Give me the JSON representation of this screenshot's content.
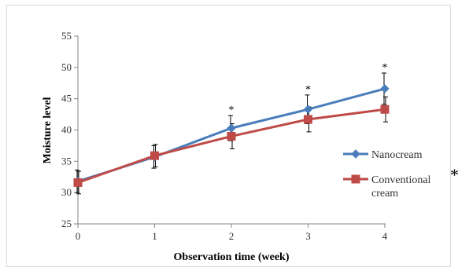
{
  "chart_data": {
    "type": "line",
    "title": "",
    "xlabel": "Observation time (week)",
    "ylabel": "Moisture level",
    "x": [
      0,
      1,
      2,
      3,
      4
    ],
    "xlim": [
      0,
      4
    ],
    "ylim": [
      25,
      55
    ],
    "yticks": [
      25,
      30,
      35,
      40,
      45,
      50,
      55
    ],
    "grid": false,
    "legend_position": "right",
    "series": [
      {
        "name": "Nanocream",
        "color": "#4a7ebb",
        "marker": "diamond",
        "values": [
          31.8,
          35.7,
          40.3,
          43.3,
          46.6
        ],
        "errors": [
          1.8,
          1.8,
          2.0,
          2.3,
          2.5
        ]
      },
      {
        "name": "Conventional cream",
        "name_lines": [
          "Conventional",
          "cream"
        ],
        "color": "#be4b48",
        "marker": "square",
        "values": [
          31.6,
          35.9,
          39.0,
          41.7,
          43.3
        ],
        "errors": [
          1.8,
          1.8,
          2.0,
          2.0,
          2.0
        ]
      }
    ],
    "significance_markers": {
      "symbol": "*",
      "at_x": [
        2,
        3,
        4
      ]
    },
    "outside_marker": "*"
  }
}
